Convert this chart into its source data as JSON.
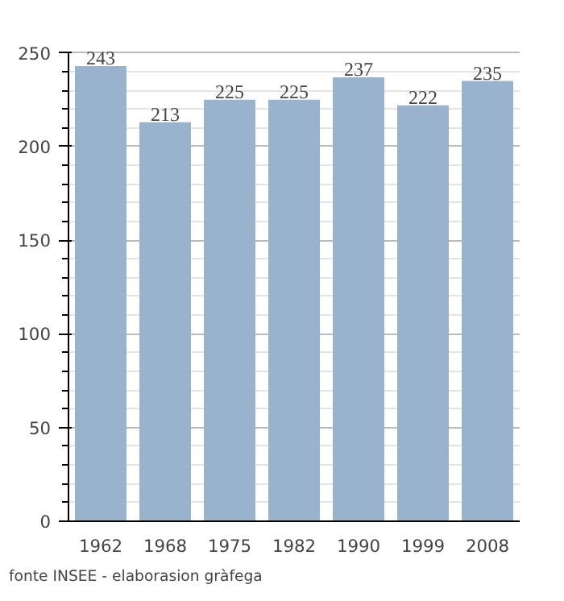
{
  "chart_data": {
    "type": "bar",
    "categories": [
      "1962",
      "1968",
      "1975",
      "1982",
      "1990",
      "1999",
      "2008"
    ],
    "values": [
      243,
      213,
      225,
      225,
      237,
      222,
      235
    ],
    "color": "#9ab3cd",
    "ylim": [
      0,
      250
    ],
    "yticks": [
      0,
      50,
      100,
      150,
      200,
      250
    ],
    "grid": "y",
    "data_labels": true,
    "annotations": [
      "fonte INSEE - elaborasion gràfega"
    ]
  }
}
